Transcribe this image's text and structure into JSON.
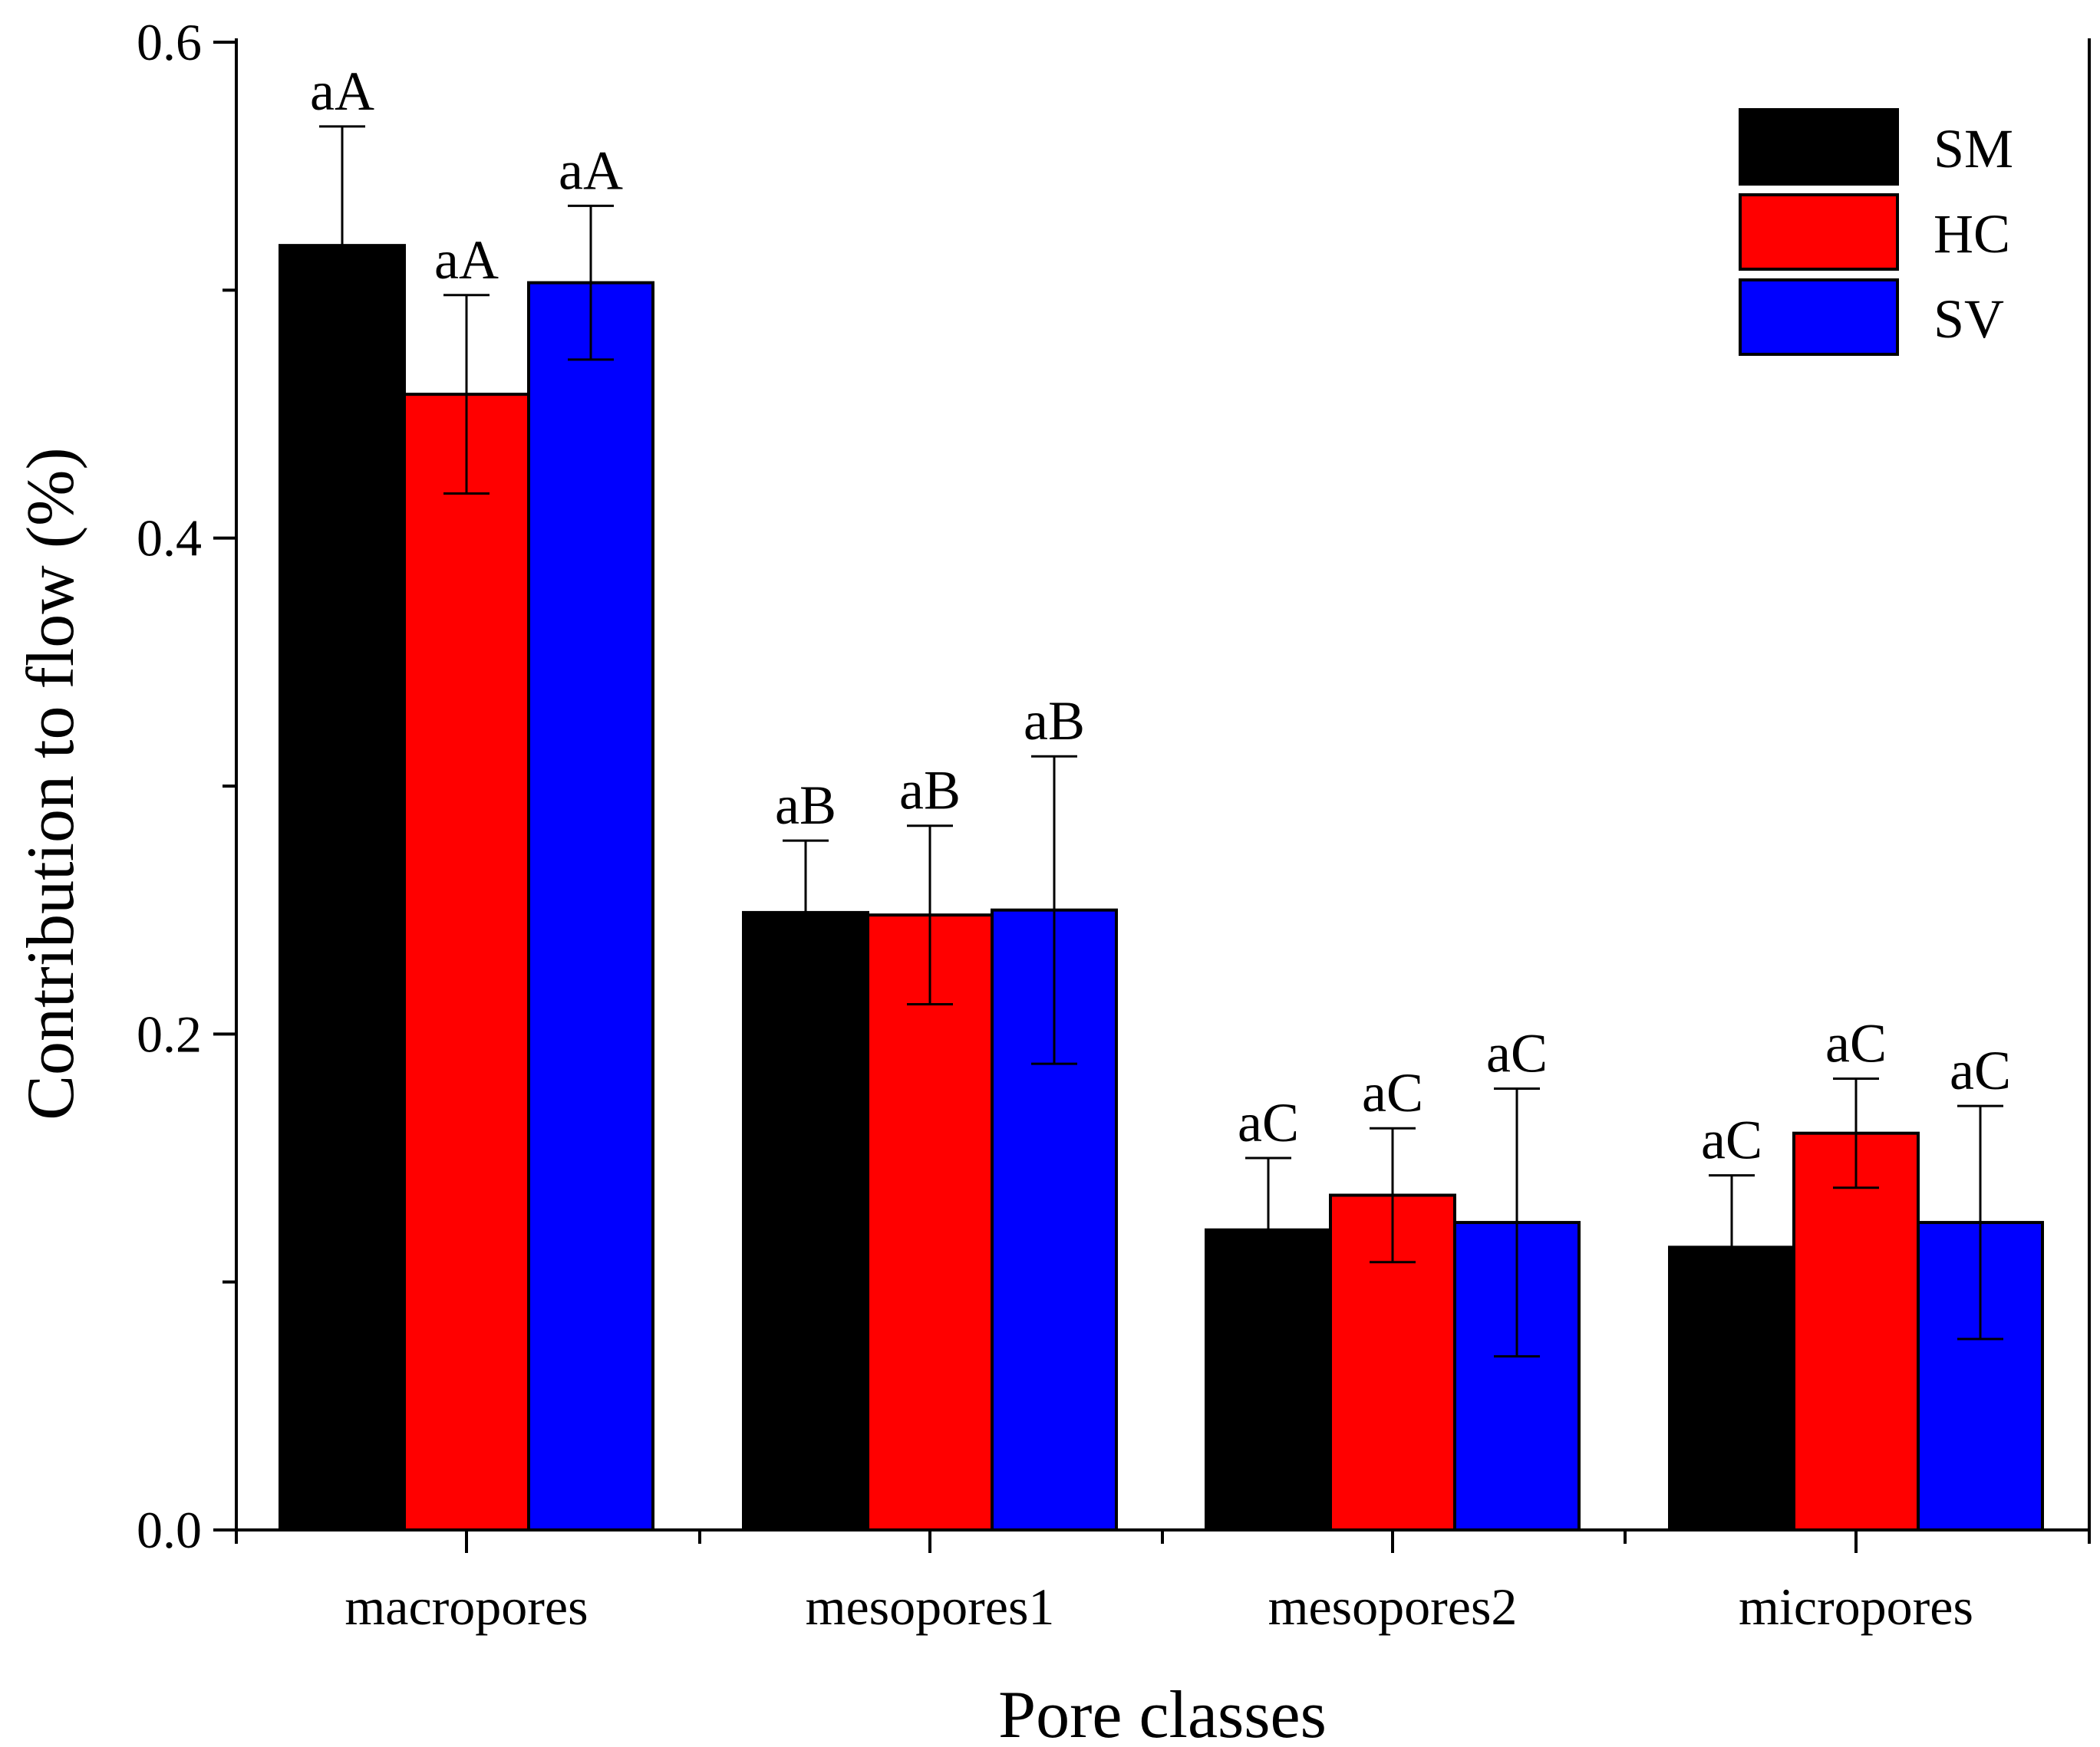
{
  "chart_data": {
    "type": "bar",
    "title": "",
    "xlabel": "Pore classes",
    "ylabel": "Contribution to flow (%)",
    "ylim": [
      0,
      0.6
    ],
    "yticks": [
      "0.0",
      "0.2",
      "0.4",
      "0.6"
    ],
    "ytick_values": [
      0.0,
      0.2,
      0.4,
      0.6
    ],
    "categories": [
      "macropores",
      "mesopores1",
      "mesopores2",
      "micropores"
    ],
    "series": [
      {
        "name": "SM",
        "color": "#000000",
        "values": [
          0.518,
          0.249,
          0.121,
          0.114
        ],
        "errors": [
          0.048,
          0.029,
          0.029,
          0.029
        ],
        "labels": [
          "aA",
          "aB",
          "aC",
          "aC"
        ]
      },
      {
        "name": "HC",
        "color": "#ff0000",
        "values": [
          0.458,
          0.248,
          0.135,
          0.16
        ],
        "errors": [
          0.04,
          0.036,
          0.027,
          0.022
        ],
        "labels": [
          "aA",
          "aB",
          "aC",
          "aC"
        ]
      },
      {
        "name": "SV",
        "color": "#0000ff",
        "values": [
          0.503,
          0.25,
          0.124,
          0.124
        ],
        "errors": [
          0.031,
          0.062,
          0.054,
          0.047
        ],
        "labels": [
          "aA",
          "aB",
          "aC",
          "aC"
        ]
      }
    ],
    "legend_position": "top-right"
  }
}
